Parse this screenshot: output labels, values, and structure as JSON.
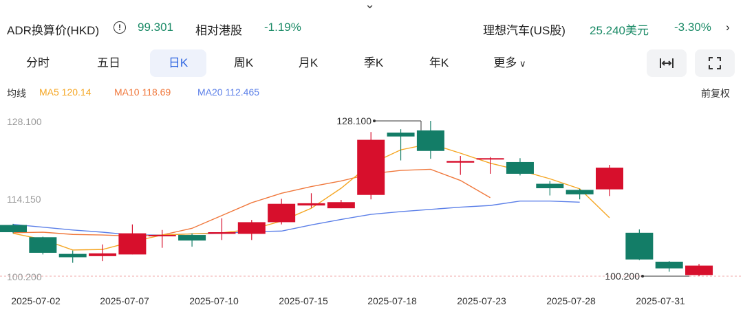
{
  "header": {
    "adr_label": "ADR换算价(HKD)",
    "adr_value": "99.301",
    "relative_label": "相对港股",
    "relative_value": "-1.19%",
    "us_stock_label": "理想汽车(US股)",
    "us_price": "25.240美元",
    "us_change": "-3.30%"
  },
  "tabs": [
    "分时",
    "五日",
    "日K",
    "周K",
    "月K",
    "季K",
    "年K",
    "更多"
  ],
  "active_tab": "日K",
  "toolbar": {
    "expand_icon": "horizontal-expand-icon",
    "fullscreen_icon": "fullscreen-icon"
  },
  "ma_legend": {
    "label": "均线",
    "ma5": "MA5 120.14",
    "ma10": "MA10 118.69",
    "ma20": "MA20 112.465",
    "adjust": "前复权"
  },
  "chart_data": {
    "type": "candlestick",
    "y_ticks": [
      "128.100",
      "114.150",
      "100.200"
    ],
    "x_ticks": [
      "2025-07-02",
      "2025-07-07",
      "2025-07-10",
      "2025-07-15",
      "2025-07-18",
      "2025-07-23",
      "2025-07-28",
      "2025-07-31"
    ],
    "high_label": "128.100",
    "low_label": "100.200",
    "colors": {
      "up": "#d70f2c",
      "down": "#137d67",
      "ma5": "#f5a623",
      "ma10": "#f0783c",
      "ma20": "#5b7fe8"
    },
    "candles": [
      {
        "o": 109.4,
        "c": 108.1,
        "h": 109.6,
        "l": 107.9
      },
      {
        "o": 107.2,
        "c": 104.4,
        "h": 107.3,
        "l": 104.1
      },
      {
        "o": 104.2,
        "c": 103.6,
        "h": 104.8,
        "l": 102.6
      },
      {
        "o": 103.8,
        "c": 104.3,
        "h": 105.9,
        "l": 102.9
      },
      {
        "o": 104.1,
        "c": 107.9,
        "h": 109.5,
        "l": 104.1
      },
      {
        "o": 107.4,
        "c": 107.6,
        "h": 108.5,
        "l": 105.3
      },
      {
        "o": 107.6,
        "c": 106.6,
        "h": 107.9,
        "l": 105.5
      },
      {
        "o": 107.8,
        "c": 108.1,
        "h": 110.6,
        "l": 106.7
      },
      {
        "o": 107.8,
        "c": 109.9,
        "h": 110.3,
        "l": 106.7
      },
      {
        "o": 109.9,
        "c": 113.2,
        "h": 114.1,
        "l": 109.5
      },
      {
        "o": 112.9,
        "c": 113.3,
        "h": 115.1,
        "l": 112.5
      },
      {
        "o": 112.4,
        "c": 113.5,
        "h": 113.9,
        "l": 112.4
      },
      {
        "o": 114.8,
        "c": 124.7,
        "h": 126.1,
        "l": 114.0
      },
      {
        "o": 126.0,
        "c": 125.3,
        "h": 126.6,
        "l": 121.0
      },
      {
        "o": 126.4,
        "c": 122.7,
        "h": 128.1,
        "l": 121.3
      },
      {
        "o": 120.6,
        "c": 120.9,
        "h": 121.8,
        "l": 118.4
      },
      {
        "o": 121.3,
        "c": 121.4,
        "h": 121.6,
        "l": 118.6
      },
      {
        "o": 120.7,
        "c": 118.6,
        "h": 121.4,
        "l": 118.3
      },
      {
        "o": 116.8,
        "c": 116.0,
        "h": 117.3,
        "l": 114.7
      },
      {
        "o": 115.7,
        "c": 114.9,
        "h": 115.9,
        "l": 114.0
      },
      {
        "o": 115.8,
        "c": 119.7,
        "h": 120.2,
        "l": 114.6
      },
      {
        "o": 108.0,
        "c": 103.2,
        "h": 108.6,
        "l": 103.1
      },
      {
        "o": 102.8,
        "c": 101.6,
        "h": 102.9,
        "l": 101.0
      },
      {
        "o": 100.4,
        "c": 102.1,
        "h": 102.4,
        "l": 100.2
      }
    ],
    "ma5": [
      107.9,
      106.8,
      104.9,
      105.0,
      106.4,
      107.6,
      107.8,
      108.0,
      108.6,
      110.1,
      112.4,
      116.0,
      120.4,
      122.9,
      124.0,
      122.3,
      120.5,
      119.2,
      117.7,
      115.9,
      110.7
    ],
    "ma10": [
      108.0,
      108.1,
      107.7,
      107.6,
      107.4,
      107.6,
      108.8,
      111.1,
      113.4,
      115.1,
      116.3,
      117.3,
      118.6,
      119.2,
      119.4,
      117.4,
      114.3
    ],
    "ma20": [
      109.5,
      109.0,
      108.5,
      108.1,
      107.6,
      107.6,
      107.8,
      107.9,
      108.2,
      108.3,
      109.4,
      110.4,
      111.3,
      111.8,
      112.2,
      112.6,
      112.9,
      113.7,
      113.7,
      113.5
    ]
  }
}
